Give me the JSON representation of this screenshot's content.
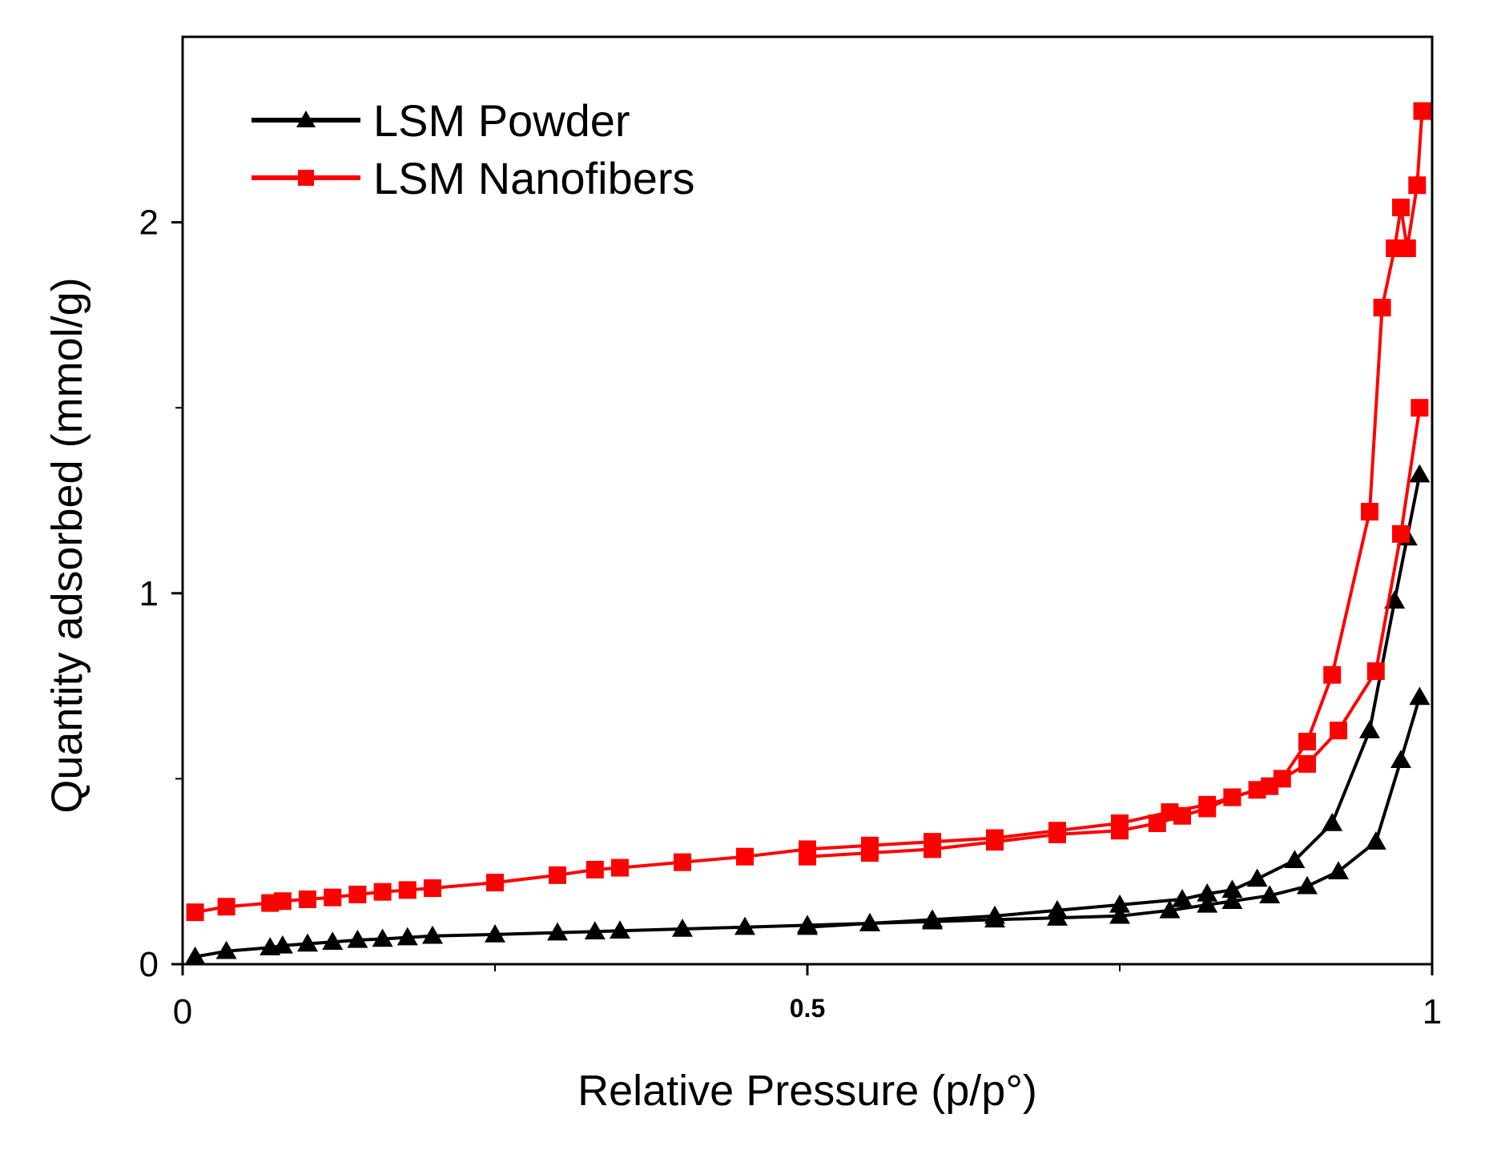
{
  "chart_data": {
    "type": "line",
    "title": "",
    "xlabel": "Relative Pressure (p/p°)",
    "ylabel": "Quantity adsorbed (mmol/g)",
    "xlim": [
      0,
      1
    ],
    "ylim": [
      0,
      2.5
    ],
    "grid": false,
    "legend_position": "top-left",
    "x_ticks": [
      {
        "value": 0,
        "label": "0"
      },
      {
        "value": 0.5,
        "label": "0.5"
      },
      {
        "value": 1,
        "label": "1"
      }
    ],
    "x_minor_ticks": [
      0.25,
      0.75
    ],
    "y_ticks": [
      {
        "value": 0,
        "label": "0"
      },
      {
        "value": 1,
        "label": "1"
      },
      {
        "value": 2,
        "label": "2"
      }
    ],
    "y_minor_ticks": [
      0.5,
      1.5
    ],
    "series": [
      {
        "name": "LSM Powder",
        "color": "#000000",
        "marker": "triangle",
        "branches": [
          {
            "name": "adsorption",
            "x": [
              0.01,
              0.035,
              0.07,
              0.08,
              0.1,
              0.12,
              0.14,
              0.16,
              0.18,
              0.2,
              0.25,
              0.3,
              0.33,
              0.35,
              0.4,
              0.45,
              0.5,
              0.55,
              0.6,
              0.65,
              0.7,
              0.75,
              0.79,
              0.82,
              0.84,
              0.87,
              0.9,
              0.925,
              0.955,
              0.975,
              0.99
            ],
            "y": [
              0.02,
              0.035,
              0.045,
              0.05,
              0.055,
              0.06,
              0.065,
              0.068,
              0.072,
              0.076,
              0.08,
              0.085,
              0.088,
              0.09,
              0.095,
              0.1,
              0.105,
              0.11,
              0.115,
              0.12,
              0.125,
              0.13,
              0.145,
              0.16,
              0.17,
              0.185,
              0.21,
              0.25,
              0.33,
              0.55,
              0.72
            ]
          },
          {
            "name": "desorption",
            "x": [
              0.99,
              0.98,
              0.97,
              0.95,
              0.92,
              0.89,
              0.86,
              0.84,
              0.82,
              0.8,
              0.75,
              0.7,
              0.65,
              0.6,
              0.55,
              0.5
            ],
            "y": [
              1.32,
              1.15,
              0.98,
              0.63,
              0.38,
              0.28,
              0.23,
              0.2,
              0.19,
              0.175,
              0.16,
              0.145,
              0.13,
              0.12,
              0.11,
              0.1
            ]
          }
        ]
      },
      {
        "name": "LSM Nanofibers",
        "color": "#ff0000",
        "marker": "square",
        "branches": [
          {
            "name": "adsorption",
            "x": [
              0.01,
              0.035,
              0.07,
              0.08,
              0.1,
              0.12,
              0.14,
              0.16,
              0.18,
              0.2,
              0.25,
              0.3,
              0.33,
              0.35,
              0.4,
              0.45,
              0.5,
              0.55,
              0.6,
              0.65,
              0.7,
              0.75,
              0.79,
              0.82,
              0.84,
              0.87,
              0.9,
              0.925,
              0.955,
              0.975,
              0.99
            ],
            "y": [
              0.14,
              0.155,
              0.165,
              0.17,
              0.175,
              0.18,
              0.188,
              0.195,
              0.2,
              0.205,
              0.22,
              0.24,
              0.255,
              0.26,
              0.275,
              0.29,
              0.31,
              0.32,
              0.33,
              0.34,
              0.36,
              0.38,
              0.41,
              0.43,
              0.45,
              0.48,
              0.54,
              0.63,
              0.79,
              1.16,
              1.5
            ]
          },
          {
            "name": "desorption",
            "x": [
              0.992,
              0.988,
              0.98,
              0.975,
              0.97,
              0.96,
              0.95,
              0.92,
              0.9,
              0.88,
              0.86,
              0.84,
              0.82,
              0.8,
              0.78,
              0.75,
              0.7,
              0.65,
              0.6,
              0.55,
              0.5
            ],
            "y": [
              2.3,
              2.1,
              1.93,
              2.04,
              1.93,
              1.77,
              1.22,
              0.78,
              0.6,
              0.5,
              0.47,
              0.45,
              0.42,
              0.4,
              0.38,
              0.36,
              0.35,
              0.33,
              0.31,
              0.3,
              0.29
            ]
          }
        ]
      }
    ]
  }
}
